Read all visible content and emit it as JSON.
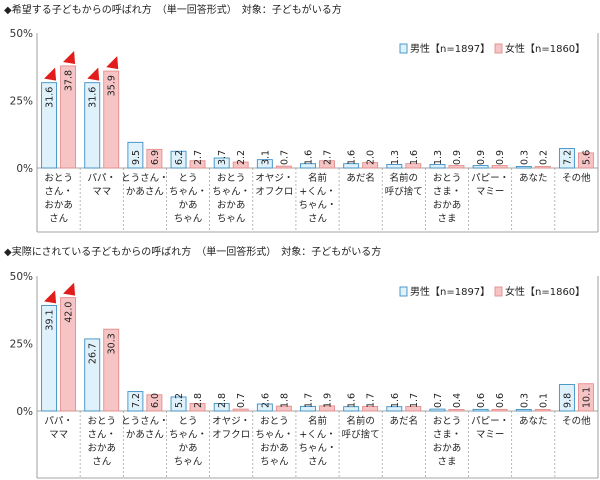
{
  "chart_data": [
    {
      "type": "bar",
      "title": "◆希望する子どもからの呼ばれ方　（単一回答形式）　対象：子どもがいる方",
      "ylim": [
        0,
        50
      ],
      "yticks": [
        "0%",
        "25%",
        "50%"
      ],
      "categories": [
        [
          "おとう",
          "さん・",
          "おかあ",
          "さん"
        ],
        [
          "パパ・",
          "ママ"
        ],
        [
          "とうさん・",
          "かあさん"
        ],
        [
          "とう",
          "ちゃん・",
          "かあ",
          "ちゃん"
        ],
        [
          "おとう",
          "ちゃん・",
          "おかあ",
          "ちゃん"
        ],
        [
          "オヤジ・",
          "オフクロ"
        ],
        [
          "名前",
          "+くん・",
          "ちゃん・",
          "さん"
        ],
        [
          "あだ名"
        ],
        [
          "名前の",
          "呼び捨て"
        ],
        [
          "おとう",
          "さま・",
          "おかあ",
          "さま"
        ],
        [
          "パピー・",
          "マミー"
        ],
        [
          "あなた"
        ],
        [
          "その他"
        ]
      ],
      "series": [
        {
          "name": "男性【n=1897】",
          "color": "#dff1fb",
          "stroke": "#3d8fc4",
          "values": [
            31.6,
            31.6,
            9.5,
            6.2,
            3.7,
            3.1,
            1.6,
            1.6,
            1.3,
            1.3,
            0.9,
            0.3,
            7.2
          ]
        },
        {
          "name": "女性【n=1860】",
          "color": "#f6c4c4",
          "stroke": "#e58d8d",
          "values": [
            37.8,
            35.9,
            6.9,
            2.7,
            2.2,
            0.7,
            2.7,
            2.0,
            1.6,
            0.9,
            0.9,
            0.2,
            5.6
          ]
        }
      ],
      "highlight_categories": [
        0,
        1
      ]
    },
    {
      "type": "bar",
      "title": "◆実際にされている子どもからの呼ばれ方　（単一回答形式）　対象：子どもがいる方",
      "ylim": [
        0,
        50
      ],
      "yticks": [
        "0%",
        "25%",
        "50%"
      ],
      "categories": [
        [
          "パパ・",
          "ママ"
        ],
        [
          "おとう",
          "さん・",
          "おかあ",
          "さん"
        ],
        [
          "とうさん・",
          "かあさん"
        ],
        [
          "とう",
          "ちゃん・",
          "かあ",
          "ちゃん"
        ],
        [
          "オヤジ・",
          "オフクロ"
        ],
        [
          "おとう",
          "ちゃん・",
          "おかあ",
          "ちゃん"
        ],
        [
          "名前",
          "+くん・",
          "ちゃん・",
          "さん"
        ],
        [
          "名前の",
          "呼び捨て"
        ],
        [
          "あだ名"
        ],
        [
          "おとう",
          "さま・",
          "おかあ",
          "さま"
        ],
        [
          "パピー・",
          "マミー"
        ],
        [
          "あなた"
        ],
        [
          "その他"
        ]
      ],
      "series": [
        {
          "name": "男性【n=1897】",
          "color": "#dff1fb",
          "stroke": "#3d8fc4",
          "values": [
            39.1,
            26.7,
            7.2,
            5.2,
            2.8,
            2.6,
            1.7,
            1.6,
            1.6,
            0.7,
            0.6,
            0.3,
            9.8
          ]
        },
        {
          "name": "女性【n=1860】",
          "color": "#f6c4c4",
          "stroke": "#e58d8d",
          "values": [
            42.0,
            30.3,
            6.0,
            2.8,
            0.7,
            1.8,
            1.9,
            1.7,
            1.7,
            0.4,
            0.6,
            0.1,
            10.1
          ]
        }
      ],
      "highlight_categories": [
        0
      ]
    }
  ]
}
